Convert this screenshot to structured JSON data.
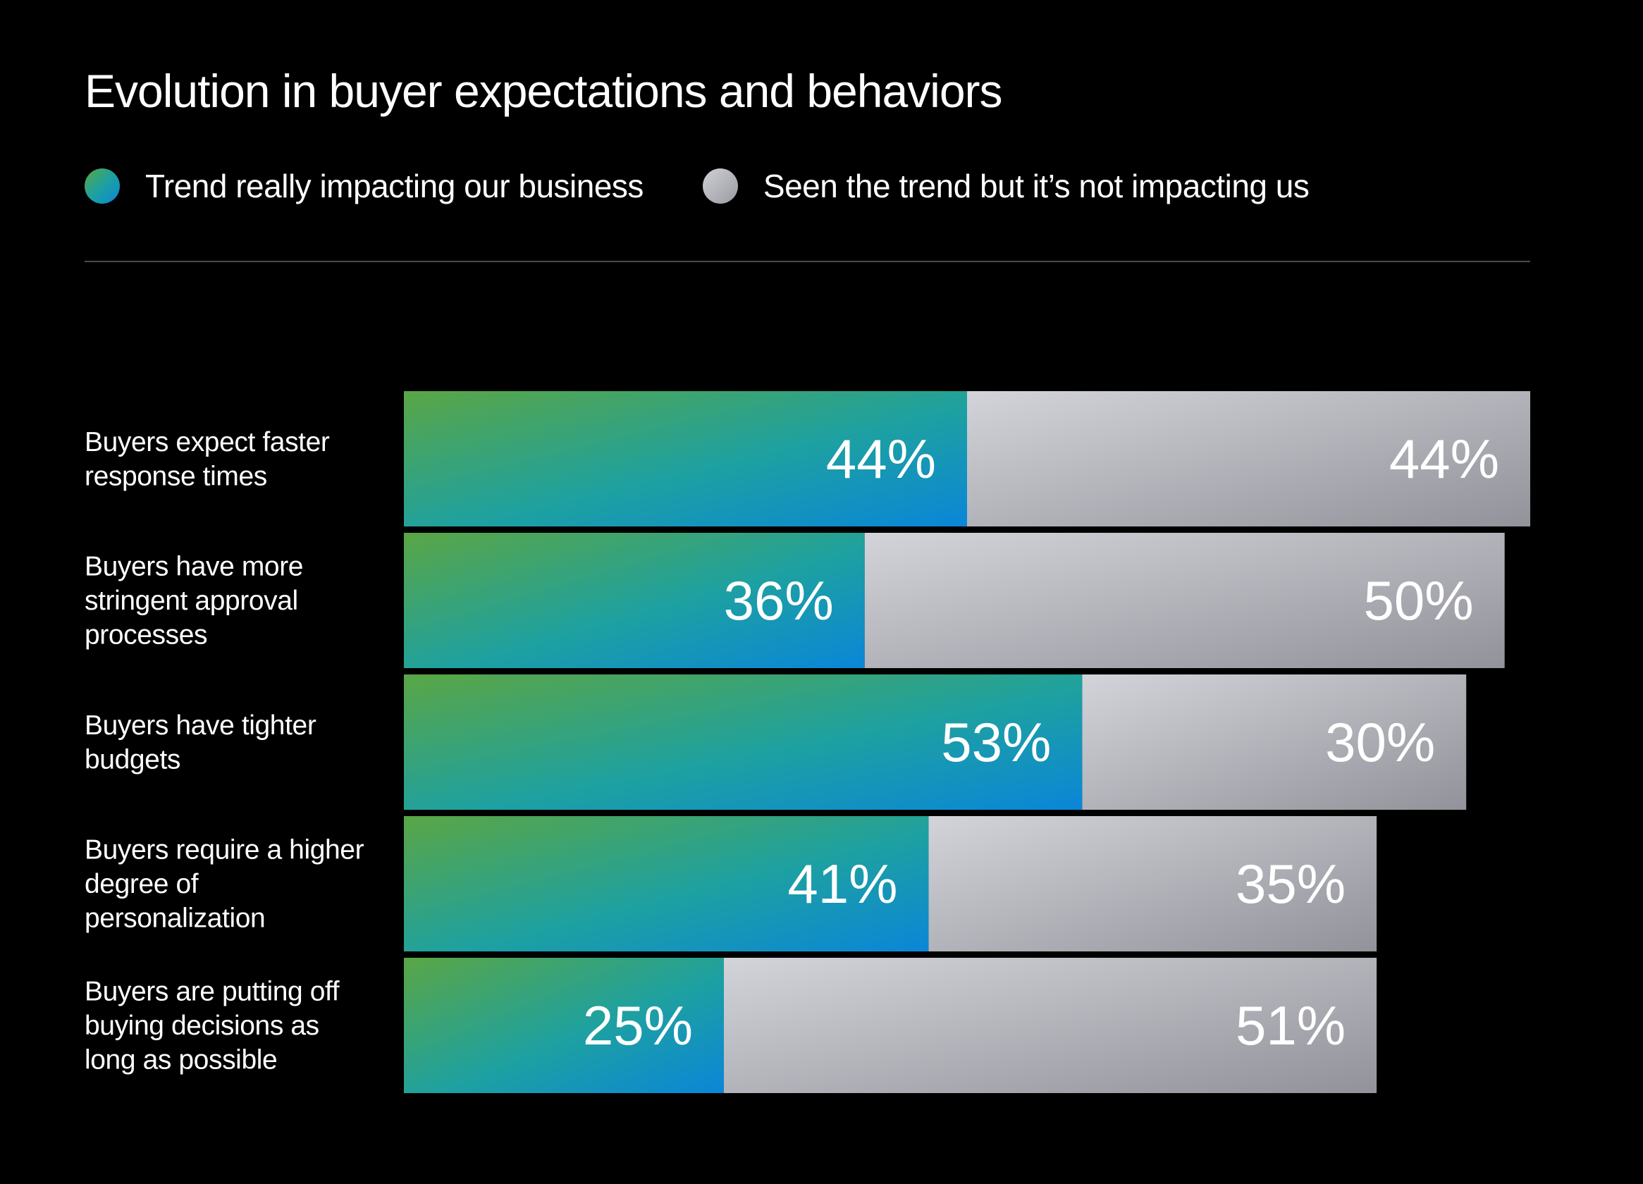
{
  "title": "Evolution in buyer expectations and behaviors",
  "legend": [
    {
      "label": "Trend really impacting our business",
      "icon": "gradient-green-blue-dot"
    },
    {
      "label": "Seen the trend but it’s not impacting us",
      "icon": "gradient-gray-dot"
    }
  ],
  "colors": {
    "background": "#000000",
    "impact_start": "#5aa645",
    "impact_mid": "#1ea1a0",
    "impact_end": "#0a86d8",
    "notimpact_start": "#d3d3da",
    "notimpact_end": "#92929a"
  },
  "chart_data": {
    "type": "bar",
    "orientation": "horizontal",
    "stacked": true,
    "categories": [
      [
        "Buyers expect faster",
        "response times"
      ],
      [
        "Buyers have more",
        "stringent approval",
        "processes"
      ],
      [
        "Buyers have tighter",
        "budgets"
      ],
      [
        "Buyers require a higher",
        "degree of",
        "personalization"
      ],
      [
        "Buyers are putting off",
        "buying decisions as",
        "long as possible"
      ]
    ],
    "series": [
      {
        "name": "Trend really impacting our business",
        "values": [
          44,
          36,
          53,
          41,
          25
        ],
        "labels": [
          "44%",
          "36%",
          "53%",
          "41%",
          "25%"
        ]
      },
      {
        "name": "Seen the trend but it’s not impacting us",
        "values": [
          44,
          50,
          30,
          35,
          51
        ],
        "labels": [
          "44%",
          "50%",
          "30%",
          "35%",
          "51%"
        ]
      }
    ],
    "xlim": [
      0,
      88
    ],
    "legend": "top-left",
    "grid": false
  }
}
